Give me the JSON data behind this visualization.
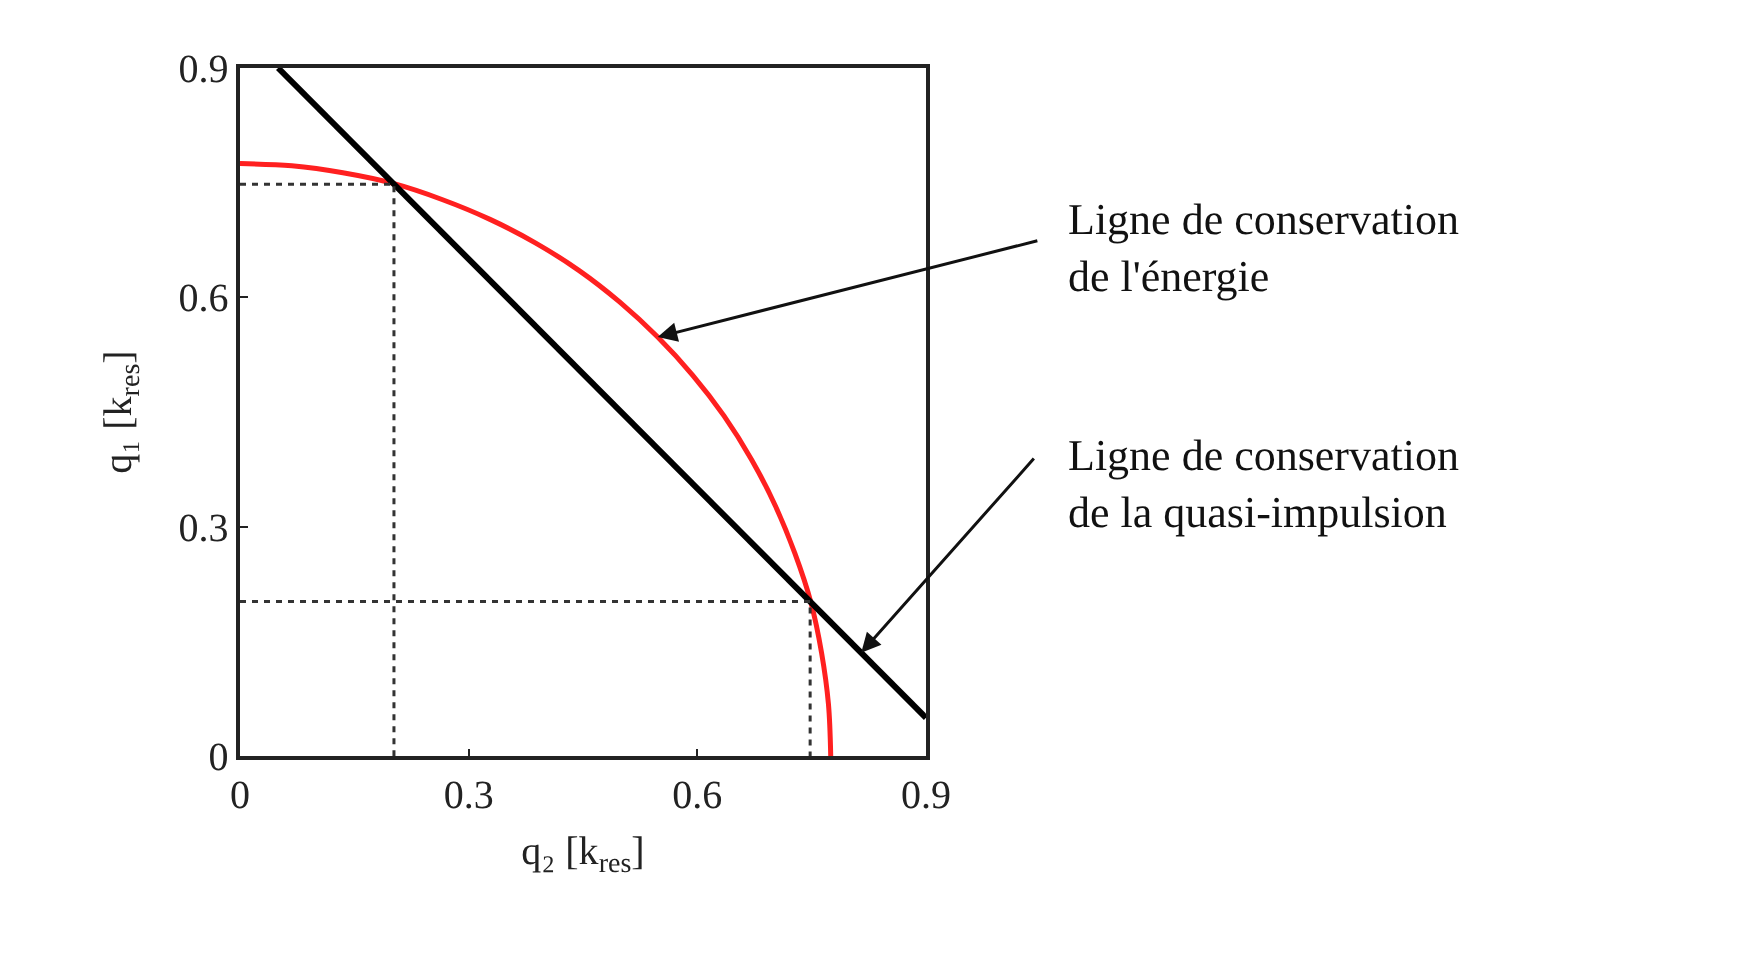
{
  "chart_data": {
    "type": "line",
    "xlabel": "q₂ [k$_{res}$]",
    "ylabel": "q₁ [k$_{res}$]",
    "xlim": [
      0,
      0.9
    ],
    "ylim": [
      0,
      0.9
    ],
    "xticks": [
      0,
      0.3,
      0.6,
      0.9
    ],
    "yticks": [
      0,
      0.3,
      0.6,
      0.9
    ],
    "marker": "none",
    "series": [
      {
        "color": "#ff2020",
        "x": [
          0,
          0.068,
          0.135,
          0.201,
          0.265,
          0.328,
          0.388,
          0.445,
          0.498,
          0.548,
          0.594,
          0.635,
          0.671,
          0.702,
          0.728,
          0.749,
          0.763,
          0.772,
          0.775
        ],
        "values": [
          0.775,
          0.772,
          0.763,
          0.749,
          0.728,
          0.702,
          0.671,
          0.635,
          0.594,
          0.548,
          0.498,
          0.445,
          0.388,
          0.328,
          0.265,
          0.201,
          0.135,
          0.068,
          0
        ]
      },
      {
        "color": "#000000",
        "x": [
          0.05,
          0.9
        ],
        "values": [
          0.9,
          0.05
        ]
      },
      {
        "color": "#333333",
        "line_style": "dotted",
        "x": [
          0,
          0.202,
          0.202
        ],
        "values": [
          0.748,
          0.748,
          0
        ]
      },
      {
        "color": "#333333",
        "line_style": "dotted",
        "x": [
          0,
          0.748,
          0.748
        ],
        "values": [
          0.202,
          0.202,
          0
        ]
      }
    ],
    "annotations": [
      {
        "text": "Ligne de conservation\nde l'énergie",
        "x": 0.548,
        "y": 0.548
      },
      {
        "text": "Ligne de conservation\nde la quasi-impulsion",
        "x": 0.815,
        "y": 0.135
      }
    ]
  }
}
